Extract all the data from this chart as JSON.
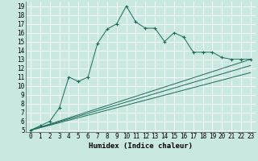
{
  "xlabel": "Humidex (Indice chaleur)",
  "bg_color": "#c8e8e0",
  "grid_color": "#ffffff",
  "line_color": "#1a6b5a",
  "xlim": [
    -0.5,
    23.5
  ],
  "ylim": [
    4.8,
    19.5
  ],
  "xticks": [
    0,
    1,
    2,
    3,
    4,
    5,
    6,
    7,
    8,
    9,
    10,
    11,
    12,
    13,
    14,
    15,
    16,
    17,
    18,
    19,
    20,
    21,
    22,
    23
  ],
  "yticks": [
    5,
    6,
    7,
    8,
    9,
    10,
    11,
    12,
    13,
    14,
    15,
    16,
    17,
    18,
    19
  ],
  "series1_x": [
    0,
    1,
    2,
    3,
    4,
    5,
    6,
    7,
    8,
    9,
    10,
    11,
    12,
    13,
    14,
    15,
    16,
    17,
    18,
    19,
    20,
    21,
    22,
    23
  ],
  "series1_y": [
    5.0,
    5.5,
    6.0,
    7.5,
    11.0,
    10.5,
    11.0,
    14.8,
    16.4,
    17.0,
    19.0,
    17.2,
    16.5,
    16.5,
    15.0,
    16.0,
    15.5,
    13.8,
    13.8,
    13.8,
    13.2,
    13.0,
    13.0,
    13.0
  ],
  "series2_x": [
    0,
    23
  ],
  "series2_y": [
    5.0,
    13.0
  ],
  "series3_x": [
    0,
    23
  ],
  "series3_y": [
    5.0,
    12.3
  ],
  "series4_x": [
    0,
    23
  ],
  "series4_y": [
    5.0,
    11.5
  ],
  "font_size": 5.5,
  "xlabel_fontsize": 6.5
}
